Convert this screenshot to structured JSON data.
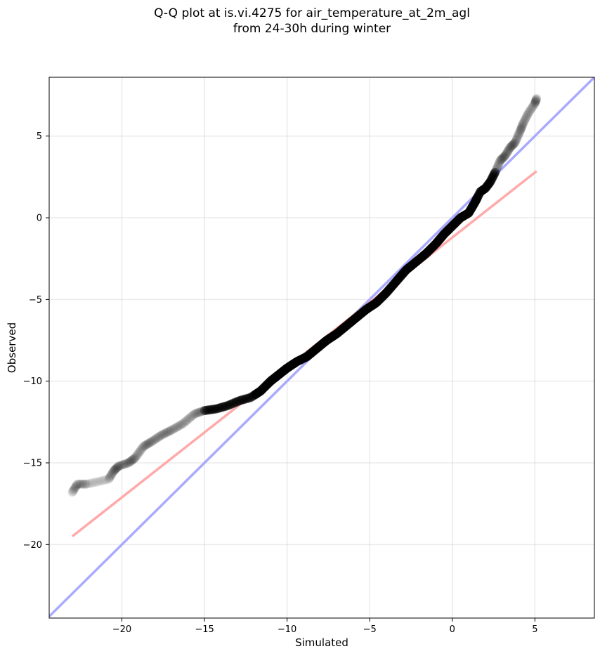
{
  "chart_data": {
    "type": "scatter",
    "title_lines": [
      "Q-Q plot at is.vi.4275 for air_temperature_at_2m_agl",
      "from 24-30h during winter"
    ],
    "xlabel": "Simulated",
    "ylabel": "Observed",
    "xlim": [
      -24.4,
      8.6
    ],
    "ylim": [
      -24.5,
      8.6
    ],
    "xticks": [
      -20,
      -15,
      -10,
      -5,
      0,
      5
    ],
    "yticks": [
      -20,
      -15,
      -10,
      -5,
      0,
      5
    ],
    "xtick_labels": [
      "−20",
      "−15",
      "−10",
      "−5",
      "0",
      "5"
    ],
    "ytick_labels": [
      "−20",
      "−15",
      "−10",
      "−5",
      "0",
      "5"
    ],
    "grid": true,
    "reference_lines": [
      {
        "kind": "identity",
        "color": "#aaaaff",
        "x": [
          -24.4,
          8.6
        ],
        "y": [
          -24.4,
          8.6
        ]
      },
      {
        "kind": "fit",
        "color": "#ffaaaa",
        "x": [
          -23.0,
          5.1
        ],
        "y": [
          -19.5,
          2.85
        ]
      }
    ],
    "qq_curve": {
      "x": [
        -23.0,
        -22.7,
        -22.1,
        -20.8,
        -20.5,
        -20.2,
        -19.6,
        -19.2,
        -18.7,
        -18.2,
        -17.6,
        -17.0,
        -16.3,
        -15.6,
        -15.0,
        -14.3,
        -13.6,
        -12.9,
        -12.2,
        -11.6,
        -11.0,
        -10.5,
        -10.0,
        -9.4,
        -8.8,
        -8.2,
        -7.6,
        -7.0,
        -6.4,
        -5.8,
        -5.2,
        -4.6,
        -4.0,
        -3.4,
        -2.8,
        -2.2,
        -1.6,
        -1.0,
        -0.5,
        0.0,
        0.5,
        1.0,
        1.4,
        1.7,
        2.0,
        2.3,
        2.6,
        2.9,
        3.2,
        3.5,
        3.8,
        4.1,
        4.3,
        4.6,
        5.0,
        5.1
      ],
      "y": [
        -16.8,
        -16.3,
        -16.3,
        -16.0,
        -15.5,
        -15.2,
        -15.0,
        -14.7,
        -14.0,
        -13.7,
        -13.3,
        -13.0,
        -12.6,
        -12.0,
        -11.8,
        -11.7,
        -11.5,
        -11.2,
        -11.0,
        -10.6,
        -10.0,
        -9.6,
        -9.2,
        -8.8,
        -8.5,
        -8.0,
        -7.5,
        -7.1,
        -6.6,
        -6.1,
        -5.6,
        -5.2,
        -4.6,
        -3.9,
        -3.2,
        -2.7,
        -2.2,
        -1.6,
        -1.0,
        -0.5,
        0.0,
        0.3,
        1.0,
        1.6,
        1.8,
        2.2,
        2.8,
        3.5,
        3.8,
        4.3,
        4.6,
        5.3,
        5.8,
        6.4,
        7.0,
        7.3
      ]
    }
  }
}
